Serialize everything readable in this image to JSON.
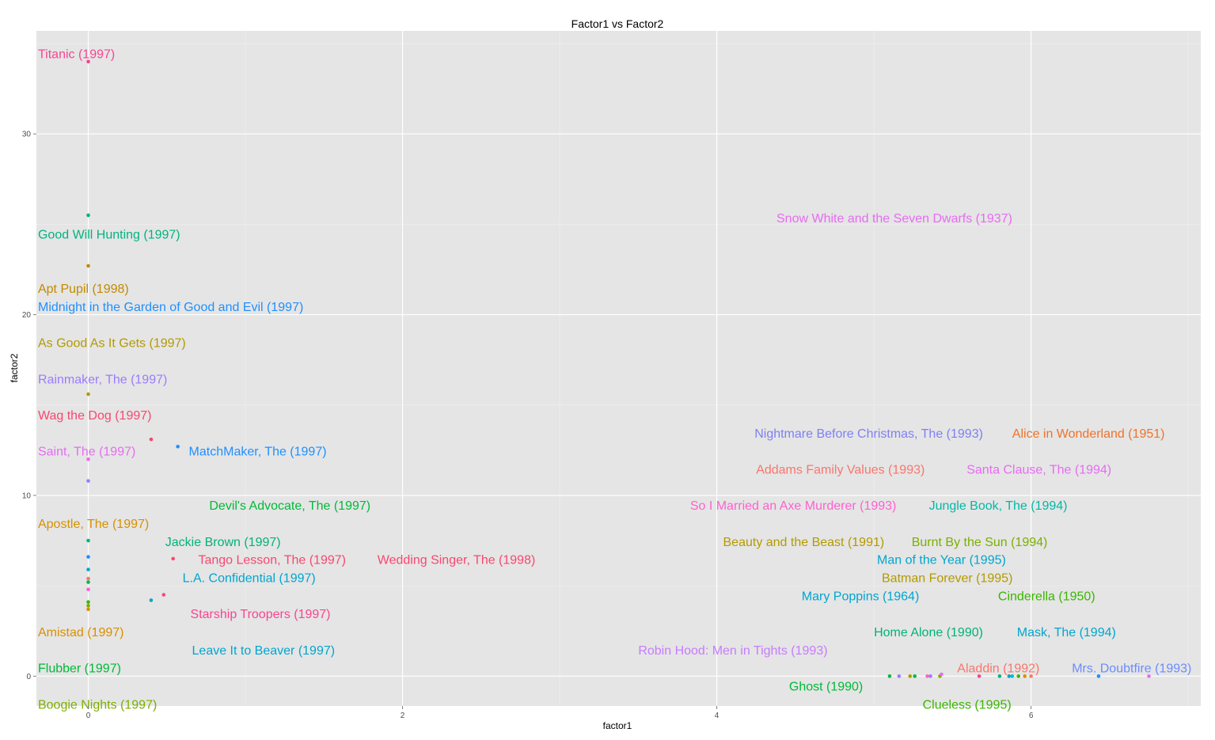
{
  "chart_data": {
    "type": "scatter",
    "title": "Factor1 vs Factor2",
    "xlabel": "factor1",
    "ylabel": "factor2",
    "xlim": [
      -0.33,
      7.08
    ],
    "ylim": [
      -1.65,
      35.7
    ],
    "x_ticks": [
      0,
      2,
      4,
      6
    ],
    "y_ticks": [
      0,
      10,
      20,
      30
    ],
    "x_tick_labels": [
      "0",
      "2",
      "4",
      "6"
    ],
    "y_tick_labels": [
      "0",
      "10",
      "20",
      "30"
    ],
    "grid": true,
    "legend": "none",
    "panel_background": "#e5e5e5",
    "grid_color": "#ffffff",
    "points": [
      {
        "x": 0,
        "y": 34.0,
        "color": "#f8458f"
      },
      {
        "x": 0,
        "y": 25.5,
        "color": "#00b380"
      },
      {
        "x": 0,
        "y": 22.7,
        "color": "#c08b00"
      },
      {
        "x": 0,
        "y": 15.6,
        "color": "#b39a00"
      },
      {
        "x": 0,
        "y": 12.0,
        "color": "#e76bf3"
      },
      {
        "x": 0,
        "y": 10.8,
        "color": "#9b7bff"
      },
      {
        "x": 0,
        "y": 7.5,
        "color": "#00b379"
      },
      {
        "x": 0,
        "y": 6.6,
        "color": "#1e90ff"
      },
      {
        "x": 0,
        "y": 5.9,
        "color": "#00a6cf"
      },
      {
        "x": 0,
        "y": 5.4,
        "color": "#f8766d"
      },
      {
        "x": 0,
        "y": 5.2,
        "color": "#00ba38"
      },
      {
        "x": 0,
        "y": 4.8,
        "color": "#fe61cf"
      },
      {
        "x": 0,
        "y": 4.1,
        "color": "#39b600"
      },
      {
        "x": 0,
        "y": 3.9,
        "color": "#7cae00"
      },
      {
        "x": 0,
        "y": 3.7,
        "color": "#d89000"
      },
      {
        "x": 0.4,
        "y": 13.1,
        "color": "#f8476f"
      },
      {
        "x": 0.57,
        "y": 12.7,
        "color": "#1e90ff"
      },
      {
        "x": 0.54,
        "y": 6.5,
        "color": "#f8476f"
      },
      {
        "x": 0.48,
        "y": 4.5,
        "color": "#f8458f"
      },
      {
        "x": 0.4,
        "y": 4.2,
        "color": "#00a6cf"
      },
      {
        "x": 5.1,
        "y": 0.0,
        "color": "#00ba38"
      },
      {
        "x": 5.16,
        "y": 0.0,
        "color": "#9b7bff"
      },
      {
        "x": 5.23,
        "y": 0.0,
        "color": "#b39a00"
      },
      {
        "x": 5.26,
        "y": 0.0,
        "color": "#00ba38"
      },
      {
        "x": 5.34,
        "y": 0.0,
        "color": "#fe61cf"
      },
      {
        "x": 5.36,
        "y": 0.0,
        "color": "#9b7bff"
      },
      {
        "x": 5.42,
        "y": 0.0,
        "color": "#7cae00"
      },
      {
        "x": 5.43,
        "y": 0.1,
        "color": "#e76bf3"
      },
      {
        "x": 5.67,
        "y": 0.0,
        "color": "#f8458f"
      },
      {
        "x": 5.8,
        "y": 0.0,
        "color": "#00b380"
      },
      {
        "x": 5.86,
        "y": 0.0,
        "color": "#00a6cf"
      },
      {
        "x": 5.88,
        "y": 0.0,
        "color": "#00bfc4"
      },
      {
        "x": 5.92,
        "y": 0.0,
        "color": "#39b600"
      },
      {
        "x": 5.96,
        "y": 0.0,
        "color": "#d89000"
      },
      {
        "x": 6.0,
        "y": 0.0,
        "color": "#f8766d"
      },
      {
        "x": 6.43,
        "y": 0.0,
        "color": "#1e90ff"
      },
      {
        "x": 6.75,
        "y": 0.0,
        "color": "#e76bf3"
      }
    ],
    "labels": [
      {
        "text": "Titanic (1997)",
        "x": -0.32,
        "y": 34.2,
        "color": "#f8458f",
        "anchor": "start"
      },
      {
        "text": "Good Will Hunting (1997)",
        "x": -0.32,
        "y": 24.2,
        "color": "#00b380",
        "anchor": "start"
      },
      {
        "text": "Apt Pupil (1998)",
        "x": -0.32,
        "y": 21.2,
        "color": "#c08b00",
        "anchor": "start"
      },
      {
        "text": "Midnight in the Garden of Good and Evil (1997)",
        "x": -0.32,
        "y": 20.2,
        "color": "#1e90ff",
        "anchor": "start"
      },
      {
        "text": "As Good As It Gets (1997)",
        "x": -0.32,
        "y": 18.2,
        "color": "#b39a00",
        "anchor": "start"
      },
      {
        "text": "Rainmaker, The (1997)",
        "x": -0.32,
        "y": 16.2,
        "color": "#9b7bff",
        "anchor": "start"
      },
      {
        "text": "Wag the Dog (1997)",
        "x": -0.32,
        "y": 14.2,
        "color": "#f8476f",
        "anchor": "start"
      },
      {
        "text": "Saint, The (1997)",
        "x": -0.32,
        "y": 12.2,
        "color": "#e76bf3",
        "anchor": "start"
      },
      {
        "text": "MatchMaker, The (1997)",
        "x": 0.64,
        "y": 12.2,
        "color": "#1e90ff",
        "anchor": "start"
      },
      {
        "text": "Devil's Advocate, The (1997)",
        "x": 0.77,
        "y": 9.2,
        "color": "#00ba38",
        "anchor": "start"
      },
      {
        "text": "Apostle, The (1997)",
        "x": -0.32,
        "y": 8.2,
        "color": "#d89000",
        "anchor": "start"
      },
      {
        "text": "Jackie Brown (1997)",
        "x": 0.49,
        "y": 7.2,
        "color": "#00b379",
        "anchor": "start"
      },
      {
        "text": "Tango Lesson, The (1997)",
        "x": 0.7,
        "y": 6.2,
        "color": "#f8476f",
        "anchor": "start"
      },
      {
        "text": "Wedding Singer, The (1998)",
        "x": 1.84,
        "y": 6.2,
        "color": "#f8476f",
        "anchor": "start"
      },
      {
        "text": "L.A. Confidential (1997)",
        "x": 0.6,
        "y": 5.2,
        "color": "#00a6cf",
        "anchor": "start"
      },
      {
        "text": "Starship Troopers (1997)",
        "x": 0.65,
        "y": 3.2,
        "color": "#f8458f",
        "anchor": "start"
      },
      {
        "text": "Amistad (1997)",
        "x": -0.32,
        "y": 2.2,
        "color": "#d89000",
        "anchor": "start"
      },
      {
        "text": "Leave It to Beaver (1997)",
        "x": 0.66,
        "y": 1.2,
        "color": "#00a6cf",
        "anchor": "start"
      },
      {
        "text": "Flubber (1997)",
        "x": -0.32,
        "y": 0.2,
        "color": "#00ba38",
        "anchor": "start"
      },
      {
        "text": "Boogie Nights (1997)",
        "x": -0.32,
        "y": -1.8,
        "color": "#7cae00",
        "anchor": "start"
      },
      {
        "text": "Snow White and the Seven Dwarfs (1937)",
        "x": 4.38,
        "y": 25.1,
        "color": "#e76bf3",
        "anchor": "start"
      },
      {
        "text": "Nightmare Before Christmas, The (1993)",
        "x": 4.24,
        "y": 13.2,
        "color": "#7f7ff5",
        "anchor": "start"
      },
      {
        "text": "Alice in Wonderland (1951)",
        "x": 5.88,
        "y": 13.2,
        "color": "#f0722a",
        "anchor": "start"
      },
      {
        "text": "Addams Family Values (1993)",
        "x": 4.25,
        "y": 11.2,
        "color": "#f8766d",
        "anchor": "start"
      },
      {
        "text": "Santa Clause, The (1994)",
        "x": 5.59,
        "y": 11.2,
        "color": "#e76bf3",
        "anchor": "start"
      },
      {
        "text": "So I Married an Axe Murderer (1993)",
        "x": 3.83,
        "y": 9.2,
        "color": "#fe61cf",
        "anchor": "start"
      },
      {
        "text": "Jungle Book, The (1994)",
        "x": 5.35,
        "y": 9.2,
        "color": "#00b9a8",
        "anchor": "start"
      },
      {
        "text": "Beauty and the Beast (1991)",
        "x": 4.04,
        "y": 7.2,
        "color": "#b39a00",
        "anchor": "start"
      },
      {
        "text": "Burnt By the Sun (1994)",
        "x": 5.24,
        "y": 7.2,
        "color": "#7cae00",
        "anchor": "start"
      },
      {
        "text": "Man of the Year (1995)",
        "x": 5.02,
        "y": 6.2,
        "color": "#00a6cf",
        "anchor": "start"
      },
      {
        "text": "Batman Forever (1995)",
        "x": 5.05,
        "y": 5.2,
        "color": "#b39a00",
        "anchor": "start"
      },
      {
        "text": "Mary Poppins (1964)",
        "x": 4.54,
        "y": 4.2,
        "color": "#00a6cf",
        "anchor": "start"
      },
      {
        "text": "Cinderella (1950)",
        "x": 5.79,
        "y": 4.2,
        "color": "#39b600",
        "anchor": "start"
      },
      {
        "text": "Home Alone (1990)",
        "x": 5.0,
        "y": 2.2,
        "color": "#00b379",
        "anchor": "start"
      },
      {
        "text": "Mask, The (1994)",
        "x": 5.91,
        "y": 2.2,
        "color": "#00a6cf",
        "anchor": "start"
      },
      {
        "text": "Robin Hood: Men in Tights (1993)",
        "x": 3.5,
        "y": 1.2,
        "color": "#c77cff",
        "anchor": "start"
      },
      {
        "text": "Aladdin (1992)",
        "x": 5.53,
        "y": 0.2,
        "color": "#f8766d",
        "anchor": "start"
      },
      {
        "text": "Mrs. Doubtfire (1993)",
        "x": 6.26,
        "y": 0.2,
        "color": "#6b8cff",
        "anchor": "start"
      },
      {
        "text": "Ghost (1990)",
        "x": 4.46,
        "y": -0.8,
        "color": "#00ba38",
        "anchor": "start"
      },
      {
        "text": "Clueless (1995)",
        "x": 5.31,
        "y": -1.8,
        "color": "#39b600",
        "anchor": "start"
      }
    ]
  }
}
